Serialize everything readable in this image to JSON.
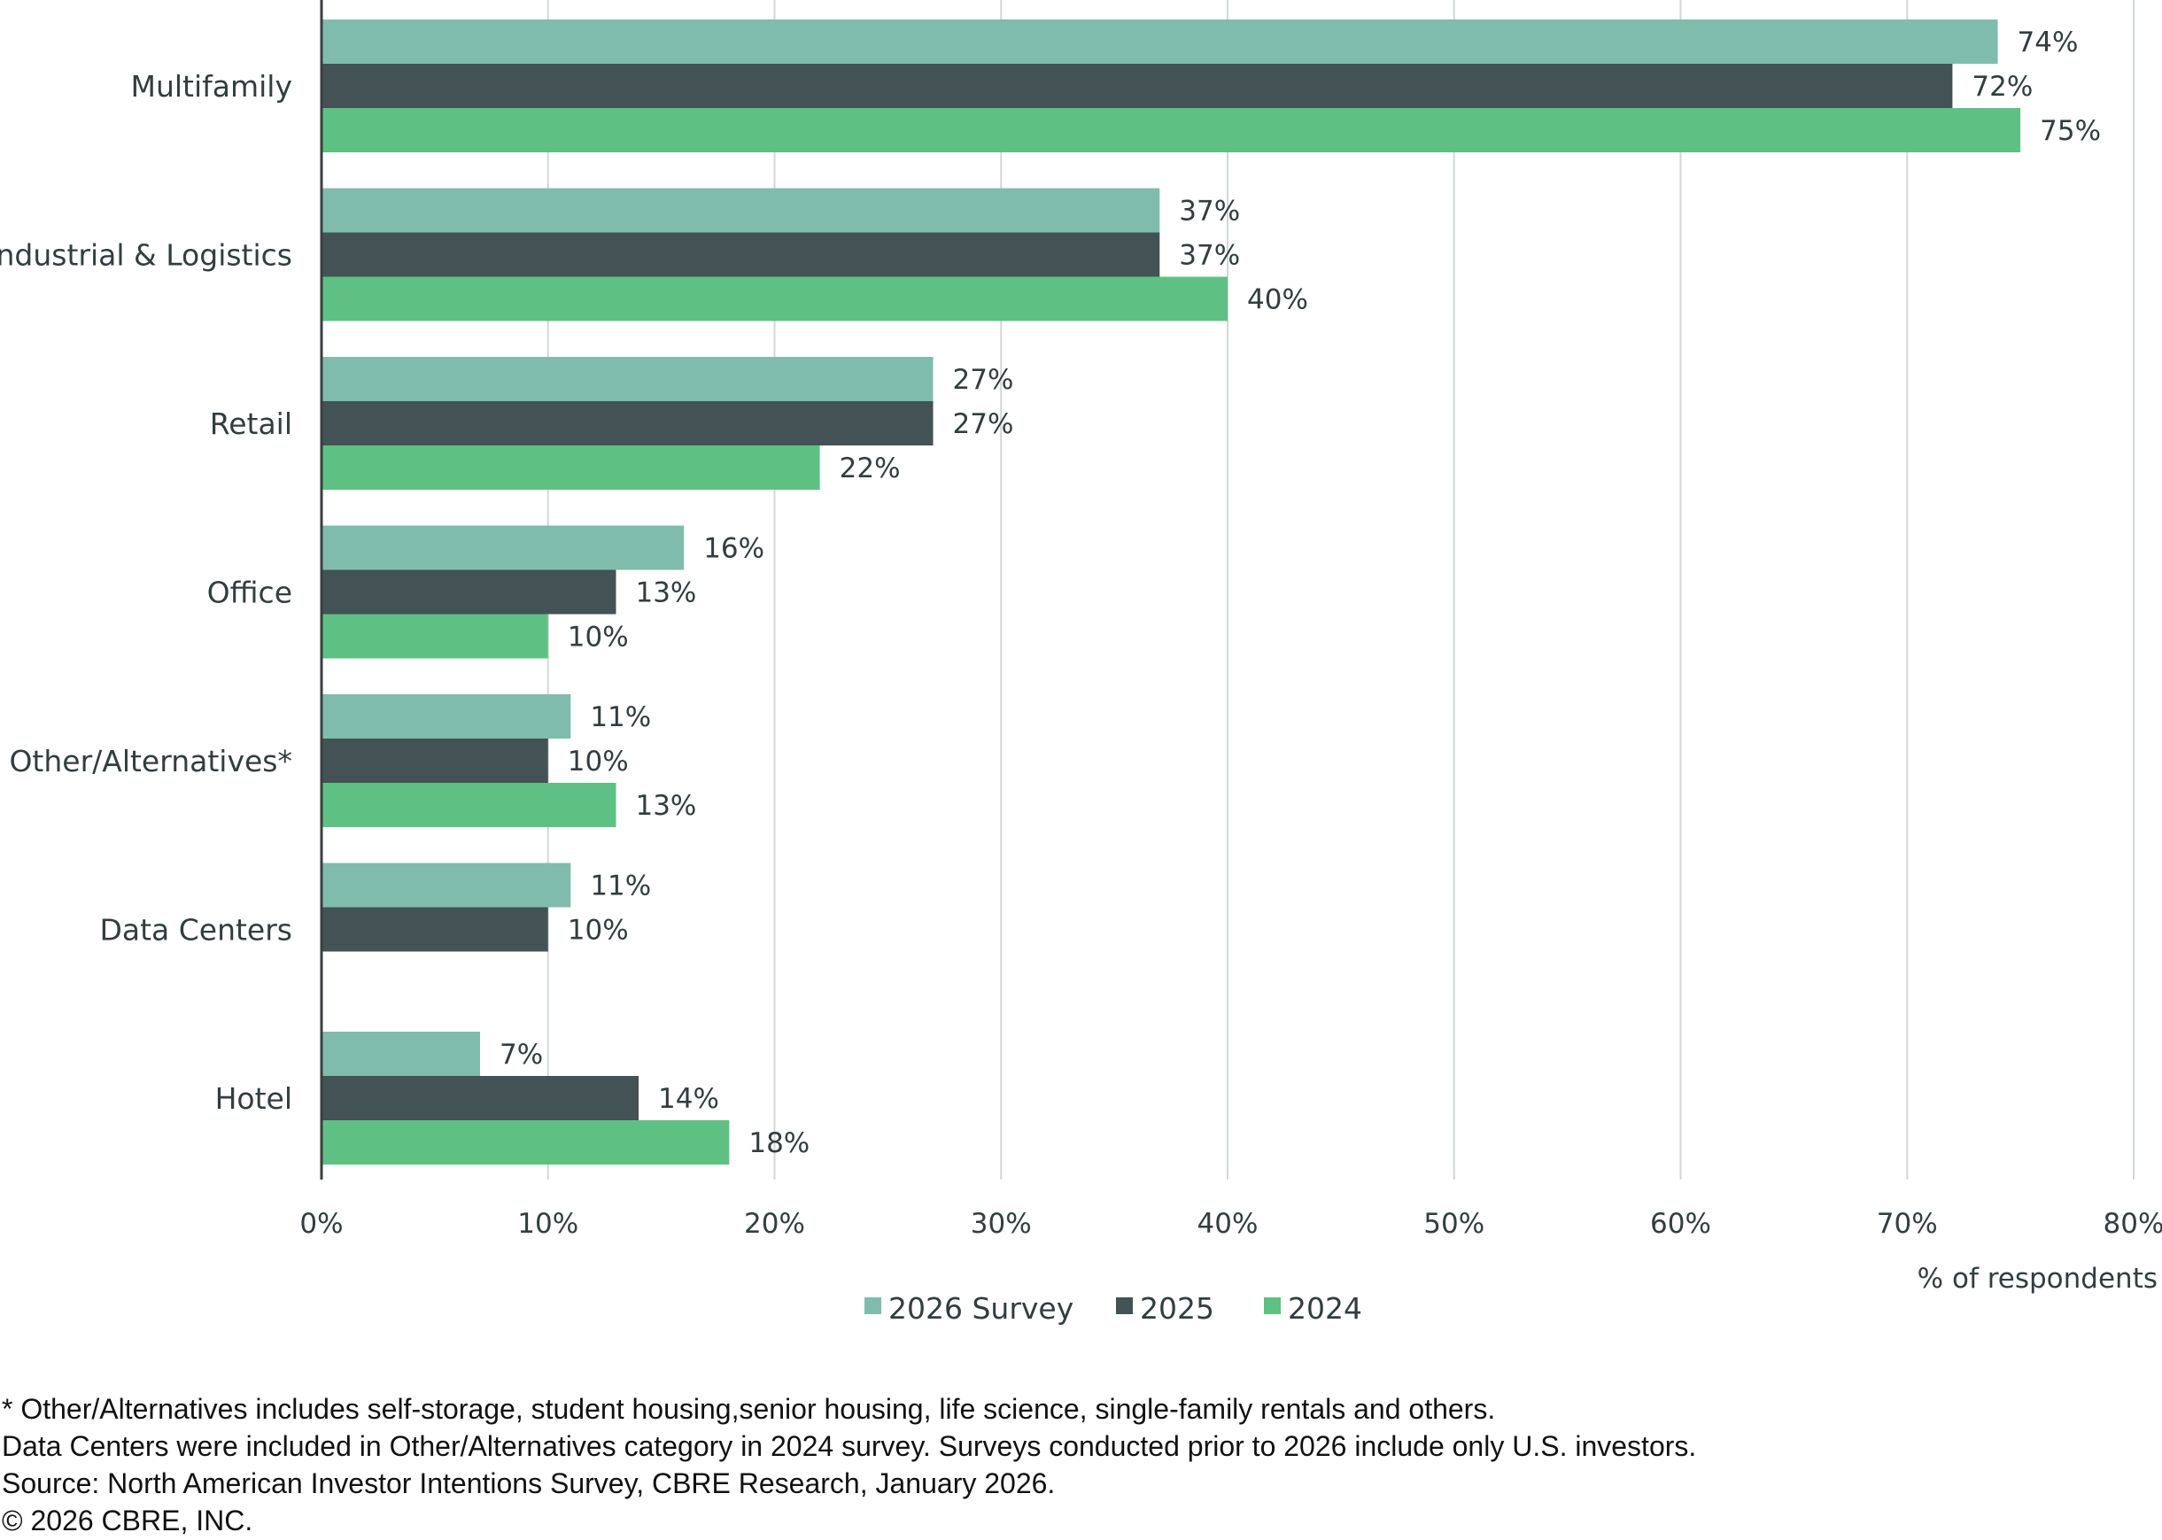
{
  "chart_data": {
    "type": "bar",
    "orientation": "horizontal",
    "categories": [
      "Multifamily",
      "Industrial & Logistics",
      "Retail",
      "Office",
      "Other/Alternatives*",
      "Data Centers",
      "Hotel"
    ],
    "series": [
      {
        "name": "2026 Survey",
        "color": "#80bcab",
        "values": [
          74,
          37,
          27,
          16,
          11,
          11,
          7
        ]
      },
      {
        "name": "2025",
        "color": "#435254",
        "values": [
          72,
          37,
          27,
          13,
          10,
          10,
          14
        ]
      },
      {
        "name": "2024",
        "color": "#5fc083",
        "values": [
          75,
          40,
          22,
          10,
          13,
          null,
          18
        ]
      }
    ],
    "value_labels": [
      [
        "74%",
        "37%",
        "27%",
        "16%",
        "11%",
        "11%",
        "7%"
      ],
      [
        "72%",
        "37%",
        "27%",
        "13%",
        "10%",
        "10%",
        "14%"
      ],
      [
        "75%",
        "40%",
        "22%",
        "10%",
        "13%",
        "",
        "18%"
      ]
    ],
    "xlim": [
      0,
      80
    ],
    "xticks": [
      0,
      10,
      20,
      30,
      40,
      50,
      60,
      70,
      80
    ],
    "xtick_labels": [
      "0%",
      "10%",
      "20%",
      "30%",
      "40%",
      "50%",
      "60%",
      "70%",
      "80%"
    ],
    "xlabel": "% of respondents",
    "ylabel": "",
    "grid": true,
    "legend_position": "bottom-center"
  },
  "footnotes": {
    "line1": "* Other/Alternatives includes self-storage, student housing,senior housing, life science, single-family rentals and others.",
    "line2": "Data Centers were included in Other/Alternatives category in 2024 survey. Surveys conducted prior to 2026 include only U.S. investors.",
    "line3": "Source: North American Investor Intentions Survey, CBRE Research, January 2026.",
    "line4": "© 2026 CBRE, INC."
  }
}
